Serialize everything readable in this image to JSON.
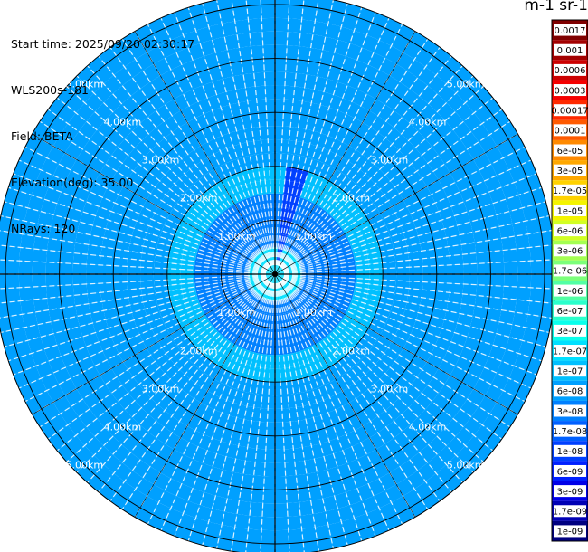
{
  "header": {
    "start_time": "Start time: 2025/09/20 02:30:17",
    "site": "WLS200s-181",
    "field": "Field: BETA",
    "elevation": "Elevation(deg): 35.00",
    "nrays": "NRays: 120"
  },
  "colorbar": {
    "unit_title": "m-1 sr-1",
    "levels": [
      {
        "label": "0.0017",
        "color": "#800000"
      },
      {
        "label": "0.001",
        "color": "#a30000"
      },
      {
        "label": "0.0006",
        "color": "#cc0000"
      },
      {
        "label": "0.0003",
        "color": "#f50000"
      },
      {
        "label": "0.00017",
        "color": "#ff2a00"
      },
      {
        "label": "0.0001",
        "color": "#ff5a00"
      },
      {
        "label": "6e-05",
        "color": "#ff8a00"
      },
      {
        "label": "3e-05",
        "color": "#ffa800"
      },
      {
        "label": "1.7e-05",
        "color": "#ffd200"
      },
      {
        "label": "1e-05",
        "color": "#f4f400"
      },
      {
        "label": "6e-06",
        "color": "#d2ff24"
      },
      {
        "label": "3e-06",
        "color": "#a4ff52"
      },
      {
        "label": "1.7e-06",
        "color": "#7cff7a"
      },
      {
        "label": "1e-06",
        "color": "#52ffa4"
      },
      {
        "label": "6e-07",
        "color": "#2affcc"
      },
      {
        "label": "3e-07",
        "color": "#0affec"
      },
      {
        "label": "1.7e-07",
        "color": "#00e0ff"
      },
      {
        "label": "1e-07",
        "color": "#00c0ff"
      },
      {
        "label": "6e-08",
        "color": "#00a0ff"
      },
      {
        "label": "3e-08",
        "color": "#0080ff"
      },
      {
        "label": "1.7e-08",
        "color": "#0060ff"
      },
      {
        "label": "1e-08",
        "color": "#0040ff"
      },
      {
        "label": "6e-09",
        "color": "#0020ff"
      },
      {
        "label": "3e-09",
        "color": "#0000e8"
      },
      {
        "label": "1.7e-09",
        "color": "#0000b4"
      },
      {
        "label": "1e-09",
        "color": "#000080"
      }
    ]
  },
  "chart_data": {
    "type": "heatmap",
    "projection": "polar-ppi",
    "field": "BETA",
    "elevation_deg": 35.0,
    "nrays": 120,
    "azimuth_step_deg": 3,
    "max_range_km": 5.2,
    "range_rings_km": [
      1,
      2,
      3,
      4,
      5
    ],
    "ring_labels": [
      "1.00km",
      "2.00km",
      "3.00km",
      "4.00km",
      "5.00km"
    ],
    "cross_hair_lines": true,
    "background_level": "6e-08",
    "radial_profile": [
      {
        "range_km": 0.0,
        "level": "1.7e-07"
      },
      {
        "range_km": 0.5,
        "level": "3e-08"
      },
      {
        "range_km": 1.0,
        "level": "3e-08"
      },
      {
        "range_km": 1.5,
        "level": "1e-07"
      },
      {
        "range_km": 2.0,
        "level": "6e-08"
      },
      {
        "range_km": 3.0,
        "level": "6e-08"
      },
      {
        "range_km": 4.0,
        "level": "6e-08"
      },
      {
        "range_km": 5.0,
        "level": "6e-08"
      }
    ],
    "features": [
      {
        "description": "narrow low-beta plume",
        "azimuth_deg_range": [
          5,
          15
        ],
        "range_km": [
          0.1,
          1.8
        ],
        "level": "1e-08"
      }
    ]
  }
}
